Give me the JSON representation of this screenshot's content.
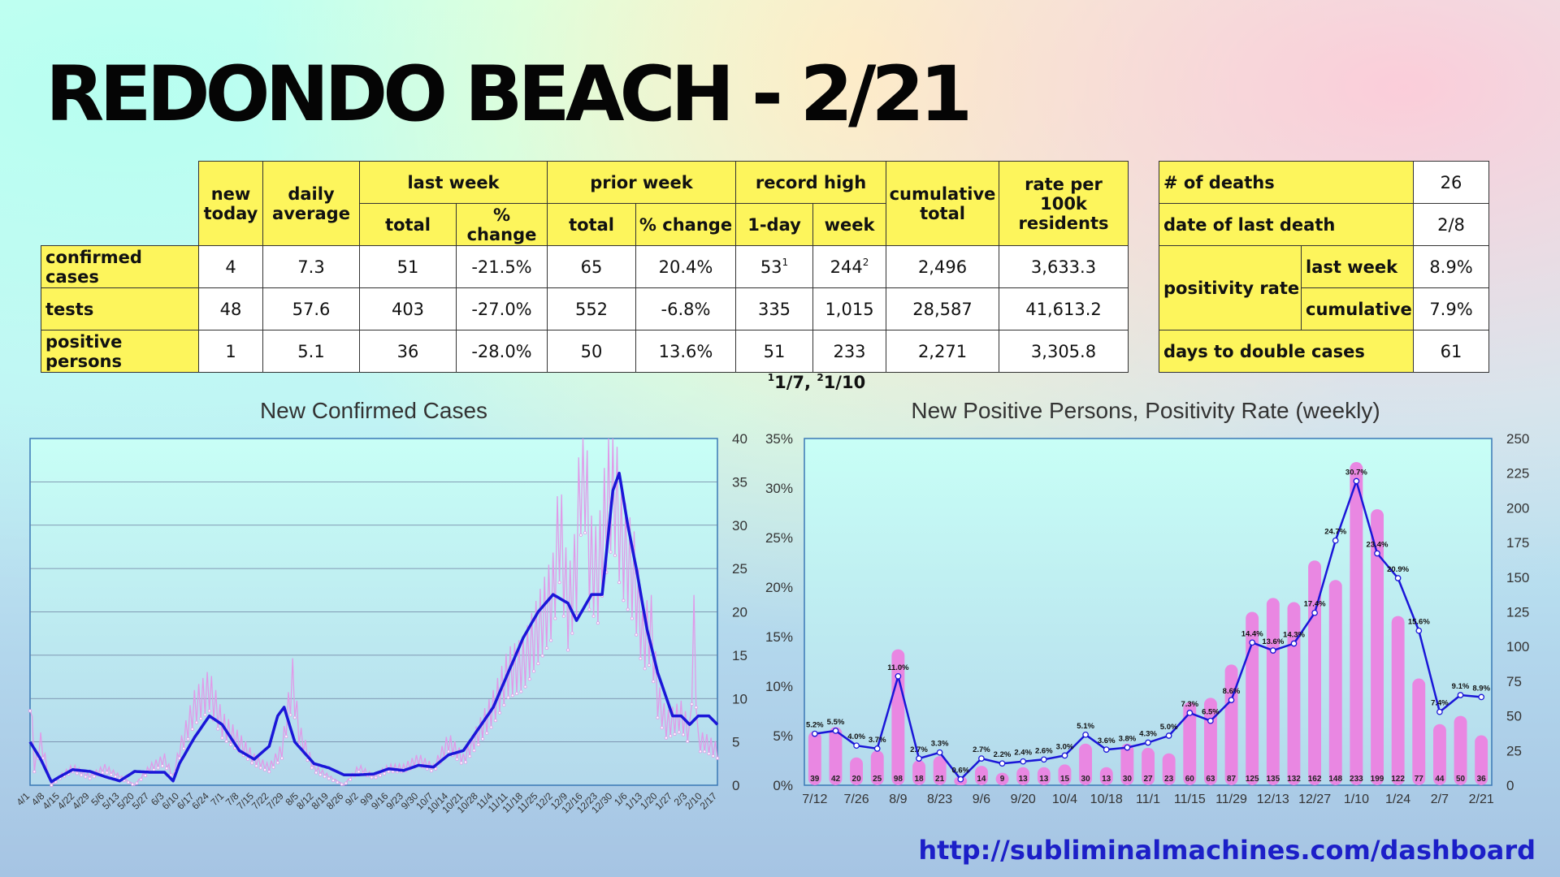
{
  "title": "REDONDO BEACH - 2/21",
  "url": "http://subliminalmachines.com/dashboard",
  "stats_table": {
    "headers": {
      "new_today": "new today",
      "daily_average": "daily average",
      "last_week": "last week",
      "prior_week": "prior week",
      "record_high": "record high",
      "cumulative_total": "cumulative total",
      "rate": "rate per 100k residents",
      "total": "total",
      "pct_change": "% change",
      "one_day": "1-day",
      "week": "week"
    },
    "rows": [
      {
        "label": "confirmed cases",
        "new_today": "4",
        "daily_average": "7.3",
        "lw_total": "51",
        "lw_change": "-21.5%",
        "pw_total": "65",
        "pw_change": "20.4%",
        "rh_day": "53",
        "rh_day_sup": "1",
        "rh_week": "244",
        "rh_week_sup": "2",
        "cumulative": "2,496",
        "rate": "3,633.3"
      },
      {
        "label": "tests",
        "new_today": "48",
        "daily_average": "57.6",
        "lw_total": "403",
        "lw_change": "-27.0%",
        "pw_total": "552",
        "pw_change": "-6.8%",
        "rh_day": "335",
        "rh_day_sup": "",
        "rh_week": "1,015",
        "rh_week_sup": "",
        "cumulative": "28,587",
        "rate": "41,613.2"
      },
      {
        "label": "positive persons",
        "new_today": "1",
        "daily_average": "5.1",
        "lw_total": "36",
        "lw_change": "-28.0%",
        "pw_total": "50",
        "pw_change": "13.6%",
        "rh_day": "51",
        "rh_day_sup": "",
        "rh_week": "233",
        "rh_week_sup": "",
        "cumulative": "2,271",
        "rate": "3,305.8"
      }
    ],
    "footnote": {
      "sup1": "1",
      "text1": "1/7, ",
      "sup2": "2",
      "text2": "1/10"
    }
  },
  "side_table": {
    "deaths_label": "# of deaths",
    "deaths_value": "26",
    "last_death_label": "date of last death",
    "last_death_value": "2/8",
    "positivity_label": "positivity rate",
    "pos_last_week_label": "last week",
    "pos_last_week_value": "8.9%",
    "pos_cumulative_label": "cumulative",
    "pos_cumulative_value": "7.9%",
    "double_label": "days to double cases",
    "double_value": "61"
  },
  "chart_data": [
    {
      "type": "line",
      "title": "New Confirmed Cases",
      "ylim": [
        0,
        40
      ],
      "yticks": [
        "0",
        "5",
        "10",
        "15",
        "20",
        "25",
        "30",
        "35",
        "40"
      ],
      "x_tick_labels": [
        "4/1",
        "4/8",
        "4/15",
        "4/22",
        "4/29",
        "5/6",
        "5/13",
        "5/20",
        "5/27",
        "6/3",
        "6/10",
        "6/17",
        "6/24",
        "7/1",
        "7/8",
        "7/15",
        "7/22",
        "7/29",
        "8/5",
        "8/12",
        "8/19",
        "8/26",
        "9/2",
        "9/9",
        "9/16",
        "9/23",
        "9/30",
        "10/7",
        "10/14",
        "10/21",
        "10/28",
        "11/4",
        "11/11",
        "11/18",
        "11/25",
        "12/2",
        "12/9",
        "12/16",
        "12/23",
        "12/30",
        "1/6",
        "1/13",
        "1/20",
        "1/27",
        "2/3",
        "2/10",
        "2/17"
      ],
      "series": [
        {
          "role": "daily",
          "color": "#e09ae8",
          "anchors": [
            [
              0,
              11
            ],
            [
              2,
              2
            ],
            [
              5,
              5
            ],
            [
              10,
              0
            ],
            [
              14,
              1
            ],
            [
              20,
              2
            ],
            [
              28,
              1
            ],
            [
              35,
              2
            ],
            [
              42,
              1
            ],
            [
              49,
              0
            ],
            [
              56,
              2
            ],
            [
              63,
              3
            ],
            [
              67,
              1
            ],
            [
              70,
              4
            ],
            [
              77,
              9
            ],
            [
              84,
              11
            ],
            [
              90,
              7
            ],
            [
              98,
              5
            ],
            [
              105,
              3
            ],
            [
              112,
              2
            ],
            [
              118,
              4
            ],
            [
              123,
              12
            ],
            [
              126,
              6
            ],
            [
              133,
              2
            ],
            [
              140,
              1
            ],
            [
              147,
              0
            ],
            [
              154,
              2
            ],
            [
              161,
              1
            ],
            [
              168,
              2
            ],
            [
              175,
              2
            ],
            [
              182,
              3
            ],
            [
              189,
              2
            ],
            [
              196,
              5
            ],
            [
              203,
              3
            ],
            [
              210,
              6
            ],
            [
              217,
              9
            ],
            [
              224,
              13
            ],
            [
              231,
              14
            ],
            [
              238,
              18
            ],
            [
              245,
              22
            ],
            [
              248,
              30
            ],
            [
              252,
              20
            ],
            [
              256,
              25
            ],
            [
              259,
              43
            ],
            [
              262,
              26
            ],
            [
              266,
              24
            ],
            [
              269,
              30
            ],
            [
              273,
              36
            ],
            [
              277,
              28
            ],
            [
              283,
              24
            ],
            [
              287,
              17
            ],
            [
              291,
              18
            ],
            [
              294,
              10
            ],
            [
              298,
              7
            ],
            [
              305,
              8
            ],
            [
              309,
              6
            ],
            [
              311,
              18
            ],
            [
              313,
              5
            ],
            [
              316,
              5
            ],
            [
              322,
              4
            ]
          ]
        },
        {
          "role": "7-day average",
          "color": "#1a16d8",
          "anchors": [
            [
              0,
              5
            ],
            [
              5,
              3
            ],
            [
              10,
              0.4
            ],
            [
              14,
              1
            ],
            [
              20,
              1.8
            ],
            [
              28,
              1.6
            ],
            [
              35,
              1
            ],
            [
              42,
              0.5
            ],
            [
              49,
              1.6
            ],
            [
              56,
              1.5
            ],
            [
              63,
              1.5
            ],
            [
              67,
              0.5
            ],
            [
              70,
              2.5
            ],
            [
              77,
              5.5
            ],
            [
              84,
              8
            ],
            [
              90,
              7
            ],
            [
              98,
              4
            ],
            [
              105,
              3
            ],
            [
              112,
              4.5
            ],
            [
              116,
              8
            ],
            [
              119,
              9
            ],
            [
              124,
              5
            ],
            [
              133,
              2.5
            ],
            [
              140,
              2
            ],
            [
              147,
              1.2
            ],
            [
              154,
              1.2
            ],
            [
              161,
              1.3
            ],
            [
              168,
              1.9
            ],
            [
              175,
              1.7
            ],
            [
              182,
              2.3
            ],
            [
              189,
              2.1
            ],
            [
              196,
              3.5
            ],
            [
              203,
              4
            ],
            [
              210,
              6.5
            ],
            [
              217,
              9
            ],
            [
              224,
              13
            ],
            [
              231,
              17
            ],
            [
              238,
              20
            ],
            [
              245,
              22
            ],
            [
              252,
              21
            ],
            [
              256,
              19
            ],
            [
              263,
              22
            ],
            [
              268,
              22
            ],
            [
              273,
              34
            ],
            [
              276,
              36
            ],
            [
              280,
              30
            ],
            [
              284,
              25
            ],
            [
              289,
              18
            ],
            [
              294,
              13
            ],
            [
              301,
              8
            ],
            [
              305,
              8
            ],
            [
              309,
              7
            ],
            [
              313,
              8
            ],
            [
              318,
              8
            ],
            [
              322,
              7
            ]
          ]
        }
      ]
    },
    {
      "type": "bar",
      "title": "New Positive Persons, Positivity Rate (weekly)",
      "ylim_left": [
        0,
        35
      ],
      "ylim_right": [
        0,
        250
      ],
      "left_ticks": [
        "0%",
        "5%",
        "10%",
        "15%",
        "20%",
        "25%",
        "30%",
        "35%"
      ],
      "right_ticks": [
        "0",
        "25",
        "50",
        "75",
        "100",
        "125",
        "150",
        "175",
        "200",
        "225",
        "250"
      ],
      "categories": [
        "7/12",
        "7/19",
        "7/26",
        "8/2",
        "8/9",
        "8/16",
        "8/23",
        "8/30",
        "9/6",
        "9/13",
        "9/20",
        "9/27",
        "10/4",
        "10/11",
        "10/18",
        "10/25",
        "11/1",
        "11/8",
        "11/15",
        "11/22",
        "11/29",
        "12/6",
        "12/13",
        "12/20",
        "12/27",
        "1/3",
        "1/10",
        "1/17",
        "1/24",
        "1/31",
        "2/7",
        "2/14",
        "2/21"
      ],
      "x_tick_labels": [
        "7/12",
        "7/26",
        "8/9",
        "8/23",
        "9/6",
        "9/20",
        "10/4",
        "10/18",
        "11/1",
        "11/15",
        "11/29",
        "12/13",
        "12/27",
        "1/10",
        "1/24",
        "2/7",
        "2/21"
      ],
      "series": [
        {
          "name": "New Positive Persons",
          "axis": "right",
          "color": "#e987e2",
          "values": [
            39,
            42,
            20,
            25,
            98,
            18,
            21,
            6,
            14,
            9,
            13,
            13,
            15,
            30,
            13,
            30,
            27,
            23,
            60,
            63,
            87,
            125,
            135,
            132,
            162,
            148,
            233,
            199,
            122,
            77,
            44,
            50,
            36
          ],
          "labels": [
            "39",
            "42",
            "20",
            "25",
            "98",
            "18",
            "21",
            "",
            "14",
            "9",
            "13",
            "13",
            "15",
            "30",
            "13",
            "30",
            "27",
            "23",
            "60",
            "63",
            "87",
            "125",
            "135",
            "132",
            "162",
            "148",
            "233",
            "199",
            "122",
            "77",
            "44",
            "50",
            "36"
          ]
        },
        {
          "name": "Positivity Rate",
          "axis": "left",
          "color": "#1a16d8",
          "values": [
            5.2,
            5.5,
            4.0,
            3.7,
            11.0,
            2.7,
            3.3,
            0.6,
            2.7,
            2.2,
            2.4,
            2.6,
            3.0,
            5.1,
            3.6,
            3.8,
            4.3,
            5.0,
            7.3,
            6.5,
            8.6,
            14.4,
            13.6,
            14.3,
            17.4,
            24.7,
            30.7,
            23.4,
            20.9,
            15.6,
            7.4,
            9.1,
            8.9
          ],
          "labels": [
            "5.2%",
            "5.5%",
            "4.0%",
            "3.7%",
            "11.0%",
            "2.7%",
            "3.3%",
            "0.6%",
            "2.7%",
            "2.2%",
            "2.4%",
            "2.6%",
            "3.0%",
            "5.1%",
            "3.6%",
            "3.8%",
            "4.3%",
            "5.0%",
            "7.3%",
            "6.5%",
            "8.6%",
            "14.4%",
            "13.6%",
            "14.3%",
            "17.4%",
            "24.7%",
            "30.7%",
            "23.4%",
            "20.9%",
            "15.6%",
            "7.4%",
            "9.1%",
            "8.9%"
          ]
        }
      ]
    }
  ]
}
